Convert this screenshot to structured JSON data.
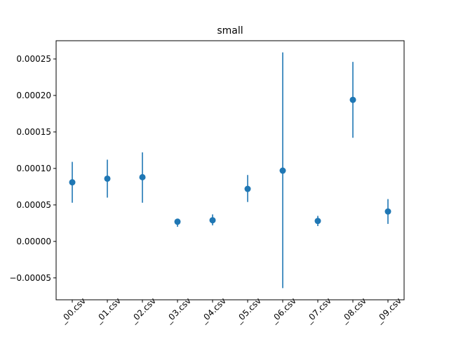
{
  "chart_data": {
    "type": "scatter",
    "title": "small",
    "xlabel": "",
    "ylabel": "",
    "categories": [
      "_00.csv",
      "_01.csv",
      "_02.csv",
      "_03.csv",
      "_04.csv",
      "_05.csv",
      "_06.csv",
      "_07.csv",
      "_08.csv",
      "_09.csv"
    ],
    "series": [
      {
        "values": [
          8.1e-05,
          8.6e-05,
          8.8e-05,
          2.7e-05,
          2.9e-05,
          7.2e-05,
          9.7e-05,
          2.8e-05,
          0.000194,
          4.1e-05
        ],
        "err_low": [
          5.3e-05,
          6e-05,
          5.3e-05,
          2e-05,
          2.2e-05,
          5.4e-05,
          -6.4e-05,
          2.1e-05,
          0.000142,
          2.4e-05
        ],
        "err_high": [
          0.000109,
          0.000112,
          0.000122,
          3.1e-05,
          3.7e-05,
          9.1e-05,
          0.000259,
          3.5e-05,
          0.000246,
          5.8e-05
        ]
      }
    ],
    "ylim": [
      -8e-05,
      0.000275
    ],
    "yticks": [
      "0.00025",
      "0.00020",
      "0.00015",
      "0.00010",
      "0.00005",
      "0.00000",
      "−0.00005"
    ],
    "ytick_values": [
      0.00025,
      0.0002,
      0.00015,
      0.0001,
      5e-05,
      0,
      -5e-05
    ],
    "grid": false,
    "color": "#1f77b4"
  }
}
